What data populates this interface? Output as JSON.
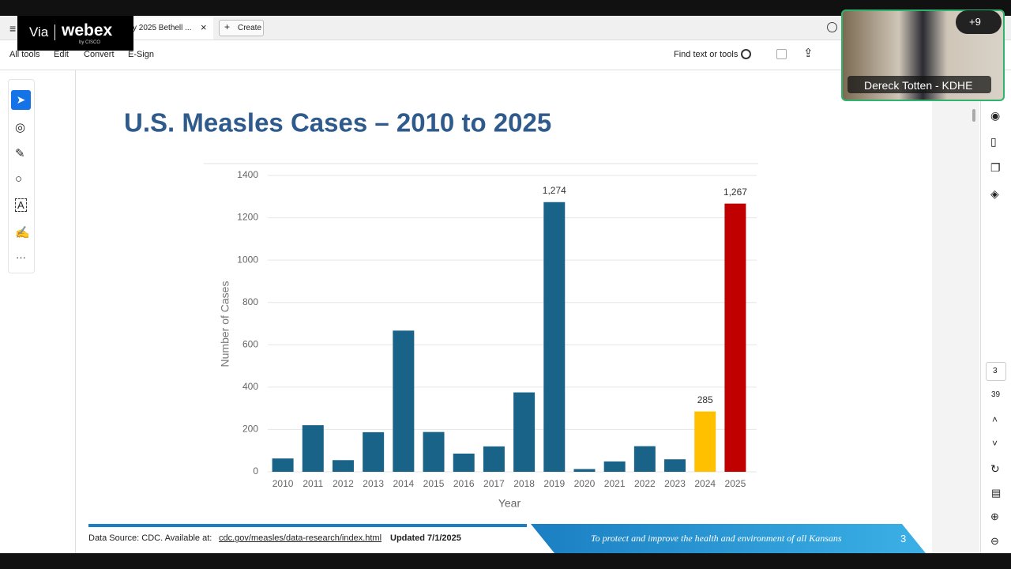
{
  "webex": {
    "via": "Via",
    "brand": "webex",
    "by": "by CISCO"
  },
  "toolbar": {
    "tab": "y 2025 Bethell ...",
    "create": "Create",
    "find": "Find text or tools"
  },
  "menu": [
    "All tools",
    "Edit",
    "Convert",
    "E-Sign"
  ],
  "video": {
    "participants": "+9",
    "name": "Dereck Totten - KDHE"
  },
  "pager": {
    "page": "3",
    "total": "39"
  },
  "footer": {
    "source": "Data Source: CDC. Available at:",
    "link": "cdc.gov/measles/data-research/index.html",
    "updated": "Updated 7/1/2025",
    "motto": "To protect and improve the health and environment of all Kansans",
    "page": "3"
  },
  "chart_data": {
    "type": "bar",
    "title": "U.S. Measles Cases – 2010 to 2025",
    "y_label": "Number of Cases",
    "x_label": "Year",
    "categories": [
      "2010",
      "2011",
      "2012",
      "2013",
      "2014",
      "2015",
      "2016",
      "2017",
      "2018",
      "2019",
      "2020",
      "2021",
      "2022",
      "2023",
      "2024",
      "2025"
    ],
    "values": [
      63,
      220,
      55,
      187,
      667,
      188,
      86,
      120,
      375,
      1274,
      13,
      49,
      121,
      59,
      285,
      1267
    ],
    "value_labels": [
      null,
      null,
      null,
      null,
      null,
      null,
      null,
      null,
      null,
      "1,274",
      null,
      null,
      null,
      null,
      "285",
      "1,267"
    ],
    "colors": [
      "#1a6388",
      "#1a6388",
      "#1a6388",
      "#1a6388",
      "#1a6388",
      "#1a6388",
      "#1a6388",
      "#1a6388",
      "#1a6388",
      "#1a6388",
      "#1a6388",
      "#1a6388",
      "#1a6388",
      "#1a6388",
      "#ffc000",
      "#c00000"
    ],
    "ylim": [
      0,
      1400
    ],
    "yticks": [
      0,
      200,
      400,
      600,
      800,
      1000,
      1200,
      1400
    ],
    "grid": true
  }
}
